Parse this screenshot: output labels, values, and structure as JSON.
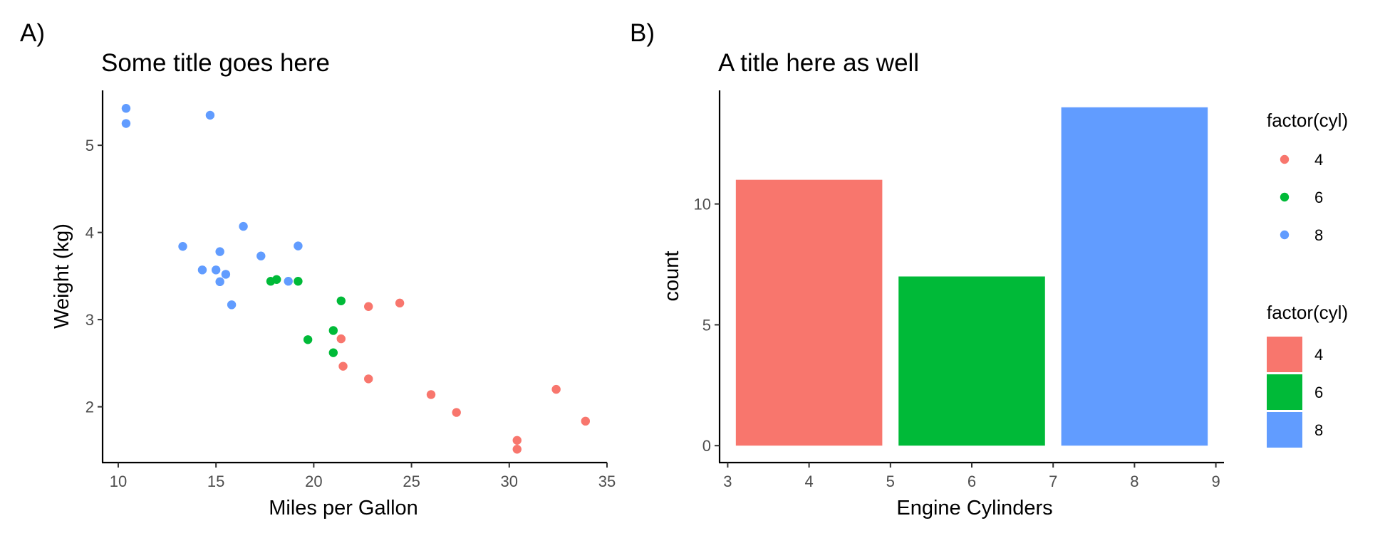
{
  "panels": {
    "a": {
      "tag": "A)"
    },
    "b": {
      "tag": "B)"
    }
  },
  "chart_data": [
    {
      "type": "scatter",
      "title": "Some title goes here",
      "xlabel": "Miles per Gallon",
      "ylabel": "Weight (kg)",
      "xlim": [
        9.2,
        35.0
      ],
      "ylim": [
        1.36,
        5.63
      ],
      "xticks": [
        10,
        15,
        20,
        25,
        30,
        35
      ],
      "yticks": [
        2,
        3,
        4,
        5
      ],
      "grid": false,
      "colors": {
        "4": "#F8766D",
        "6": "#00BA38",
        "8": "#619CFF"
      },
      "series": [
        {
          "name": "4",
          "x": [
            22.8,
            24.4,
            22.8,
            32.4,
            30.4,
            33.9,
            21.5,
            27.3,
            26.0,
            30.4,
            21.4
          ],
          "y": [
            2.32,
            3.19,
            3.15,
            2.2,
            1.615,
            1.835,
            2.465,
            1.935,
            2.14,
            1.513,
            2.78
          ]
        },
        {
          "name": "6",
          "x": [
            21.0,
            21.0,
            21.4,
            18.1,
            19.2,
            17.8,
            19.7
          ],
          "y": [
            2.62,
            2.875,
            3.215,
            3.46,
            3.44,
            3.44,
            2.77
          ]
        },
        {
          "name": "8",
          "x": [
            18.7,
            14.3,
            16.4,
            17.3,
            15.2,
            10.4,
            10.4,
            14.7,
            15.5,
            15.2,
            13.3,
            19.2,
            15.8,
            15.0
          ],
          "y": [
            3.44,
            3.57,
            4.07,
            3.73,
            3.78,
            5.25,
            5.424,
            5.345,
            3.52,
            3.435,
            3.84,
            3.845,
            3.17,
            3.57
          ]
        }
      ]
    },
    {
      "type": "bar",
      "title": "A title here as well",
      "xlabel": "Engine Cylinders",
      "ylabel": "count",
      "xlim": [
        2.9,
        9.1
      ],
      "ylim": [
        -0.7,
        14.7
      ],
      "xticks": [
        3,
        4,
        5,
        6,
        7,
        8,
        9
      ],
      "yticks": [
        0,
        5,
        10
      ],
      "grid": false,
      "bar_width": 1.8,
      "bars": [
        {
          "x": 4,
          "value": 11,
          "group": "4",
          "color": "#F8766D"
        },
        {
          "x": 6,
          "value": 7,
          "group": "6",
          "color": "#00BA38"
        },
        {
          "x": 8,
          "value": 14,
          "group": "8",
          "color": "#619CFF"
        }
      ]
    }
  ],
  "legends": [
    {
      "title": "factor(cyl)",
      "kind": "point",
      "items": [
        {
          "label": "4",
          "color": "#F8766D"
        },
        {
          "label": "6",
          "color": "#00BA38"
        },
        {
          "label": "8",
          "color": "#619CFF"
        }
      ]
    },
    {
      "title": "factor(cyl)",
      "kind": "fill",
      "items": [
        {
          "label": "4",
          "color": "#F8766D"
        },
        {
          "label": "6",
          "color": "#00BA38"
        },
        {
          "label": "8",
          "color": "#619CFF"
        }
      ]
    }
  ]
}
